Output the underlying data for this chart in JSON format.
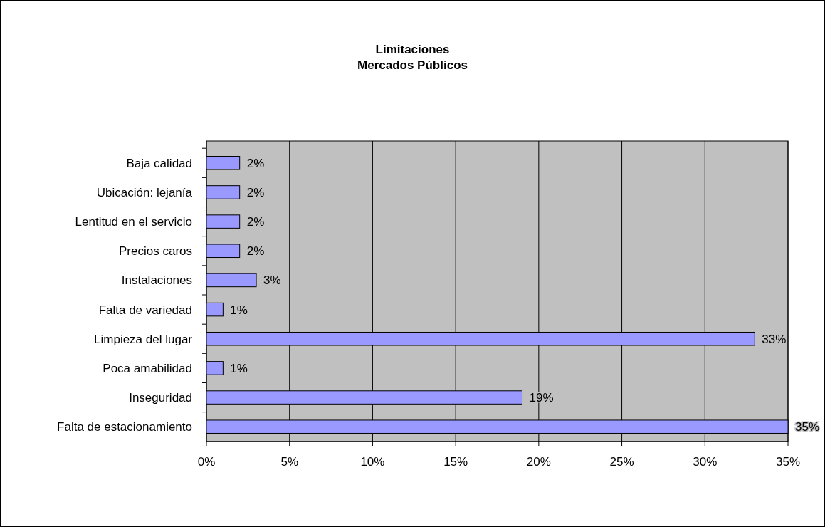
{
  "chart_data": {
    "type": "bar",
    "orientation": "horizontal",
    "title": "Limitaciones",
    "subtitle": "Mercados Públicos",
    "categories": [
      "Baja calidad",
      "Ubicación: lejanía",
      "Lentitud en el servicio",
      "Precios caros",
      "Instalaciones",
      "Falta de variedad",
      "Limpieza del lugar",
      "Poca amabilidad",
      "Inseguridad",
      "Falta de estacionamiento"
    ],
    "values": [
      2,
      2,
      2,
      2,
      3,
      1,
      33,
      1,
      19,
      35
    ],
    "value_labels": [
      "2%",
      "2%",
      "2%",
      "2%",
      "3%",
      "1%",
      "33%",
      "1%",
      "19%",
      "35%"
    ],
    "color": "#9999ff",
    "xlim": [
      0,
      35
    ],
    "xticks": [
      {
        "value": 0,
        "label": "0%"
      },
      {
        "value": 5,
        "label": "5%"
      },
      {
        "value": 10,
        "label": "10%"
      },
      {
        "value": 15,
        "label": "15%"
      },
      {
        "value": 20,
        "label": "20%"
      },
      {
        "value": 25,
        "label": "25%"
      },
      {
        "value": 30,
        "label": "30%"
      },
      {
        "value": 35,
        "label": "35%"
      }
    ],
    "grid": "x"
  }
}
